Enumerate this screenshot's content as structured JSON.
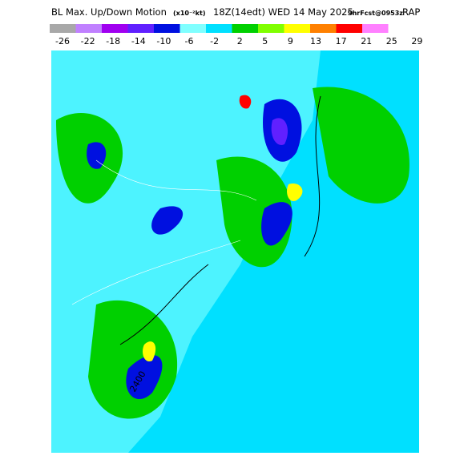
{
  "header": {
    "title": "BL Max. Up/Down Motion",
    "units": "(x10⁻²kt)",
    "valid": "18Z(14edt) WED 14 May 2025",
    "forecast": "9hrFcst@0953z",
    "model": "RAP"
  },
  "legend": {
    "colors": [
      "#a8a8a8",
      "#c080ff",
      "#a000f0",
      "#6020ff",
      "#0010e0",
      "#80ffff",
      "#00e0ff",
      "#00d000",
      "#80ff00",
      "#ffff00",
      "#ff8000",
      "#ff0000",
      "#ff80ff"
    ],
    "labels": [
      -26,
      -22,
      -18,
      -14,
      -10,
      -6,
      -2,
      2,
      5,
      9,
      13,
      17,
      21,
      25,
      29
    ]
  },
  "map": {
    "contour_label": "2400"
  }
}
